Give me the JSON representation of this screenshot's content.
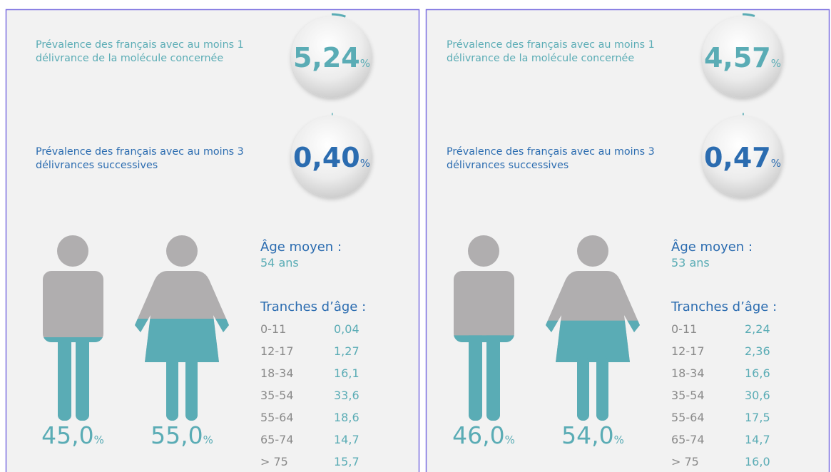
{
  "panels": [
    {
      "prevalence": [
        {
          "label": "Prévalence des français avec au moins 1 délivrance de la molécule concernée",
          "value": {
            "value": 5.24,
            "label": "5,24"
          }
        },
        {
          "label": "Prévalence des français avec au moins 3 délivrances successives",
          "value": {
            "value": 0.4,
            "label": "0,40"
          }
        }
      ],
      "unit": "%",
      "sex": [
        {
          "value": 45.0,
          "label": "45,0"
        },
        {
          "value": 55.0,
          "label": "55,0"
        }
      ],
      "mean_age_title": "Âge moyen :",
      "mean_age": "54 ans",
      "age_title": "Tranches d’âge :",
      "age_groups": [
        [
          "0-11",
          "0,04"
        ],
        [
          "12-17",
          "1,27"
        ],
        [
          "18-34",
          "16,1"
        ],
        [
          "35-54",
          "33,6"
        ],
        [
          "55-64",
          "18,6"
        ],
        [
          "65-74",
          "14,7"
        ],
        [
          "> 75",
          "15,7"
        ]
      ]
    },
    {
      "prevalence": [
        {
          "label": "Prévalence des français avec au moins 1 délivrance de la molécule concernée",
          "value": {
            "value": 4.57,
            "label": "4,57"
          }
        },
        {
          "label": "Prévalence des français avec au moins 3 délivrances successives",
          "value": {
            "value": 0.47,
            "label": "0,47"
          }
        }
      ],
      "unit": "%",
      "sex": [
        {
          "value": 46.0,
          "label": "46,0"
        },
        {
          "value": 54.0,
          "label": "54,0"
        }
      ],
      "mean_age_title": "Âge moyen :",
      "mean_age": "53 ans",
      "age_title": "Tranches d’âge :",
      "age_groups": [
        [
          "0-11",
          "2,24"
        ],
        [
          "12-17",
          "2,36"
        ],
        [
          "18-34",
          "16,6"
        ],
        [
          "35-54",
          "30,6"
        ],
        [
          "55-64",
          "17,5"
        ],
        [
          "65-74",
          "14,7"
        ],
        [
          "> 75",
          "16,0"
        ]
      ]
    }
  ]
}
